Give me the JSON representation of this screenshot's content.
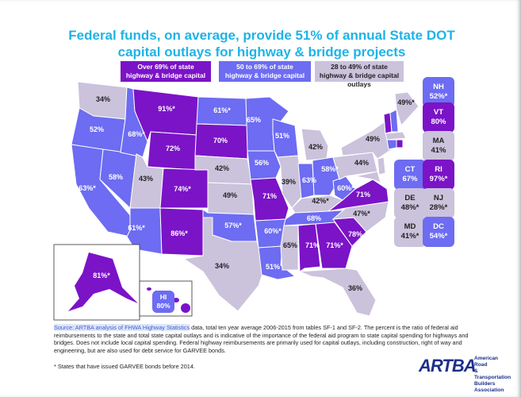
{
  "title": "Federal funds, on average, provide 51% of annual State DOT capital outlays for highway & bridge projects",
  "legend": {
    "high": "Over 69% of state highway & bridge capital outlays",
    "mid": "50 to 69% of state highway & bridge capital outlays",
    "low": "28 to 49% of state highway & bridge capital outlays"
  },
  "colors": {
    "high": "#7b13c7",
    "mid": "#6d6cf2",
    "low": "#cbc2dc",
    "title": "#1fb3e6"
  },
  "states": {
    "WA": "34%",
    "OR": "52%",
    "CA": "63%*",
    "NV": "58%",
    "ID": "68%*",
    "MT": "91%*",
    "WY": "72%",
    "UT": "43%",
    "AZ": "61%*",
    "CO": "74%*",
    "NM": "86%*",
    "ND": "61%*",
    "SD": "70%",
    "NE": "42%",
    "KS": "49%",
    "OK": "57%*",
    "TX": "34%",
    "MN": "65%",
    "IA": "56%",
    "MO": "71%",
    "AR": "60%*",
    "LA": "51%",
    "WI": "51%",
    "IL": "39%",
    "MI": "42%",
    "IN": "63%",
    "OH": "58%*",
    "KY": "42%*",
    "TN": "68%",
    "MS": "65%",
    "AL": "71%",
    "GA": "71%*",
    "FL": "36%",
    "SC": "78%",
    "NC": "47%*",
    "VA": "71%",
    "WV": "60%*",
    "PA": "44%",
    "NY": "49%",
    "ME": "49%*",
    "AK": "81%*"
  },
  "boxes": {
    "NH": "52%*",
    "VT": "80%",
    "MA": "41%",
    "CT": "67%",
    "RI": "97%*",
    "DE": "48%*",
    "NJ": "28%*",
    "MD": "41%*",
    "DC": "54%*",
    "HI": "80%"
  },
  "source": {
    "highlight": "Source: ARTBA analysis of  FHWA Highway Statistics",
    "text": " data, total ten year average 2006-2015 from tables SF-1 and SF-2.  The percent is the ratio of federal aid reimbursements to the state and total state capital outlays and is indicative of the importance of the federal aid program to state capital spending for highways and bridges.  Does not include local capital spending.  Federal highway reimbursements are primarily used for capital outlays, including construction, right of way and engineering, but are also used for debt service for GARVEE bonds."
  },
  "footnote": "* States that have issued  GARVEE bonds before 2014.",
  "logo": {
    "mark": "ARTBA",
    "line1": "American Road",
    "line2": "& Transportation",
    "line3": "Builders Association"
  }
}
